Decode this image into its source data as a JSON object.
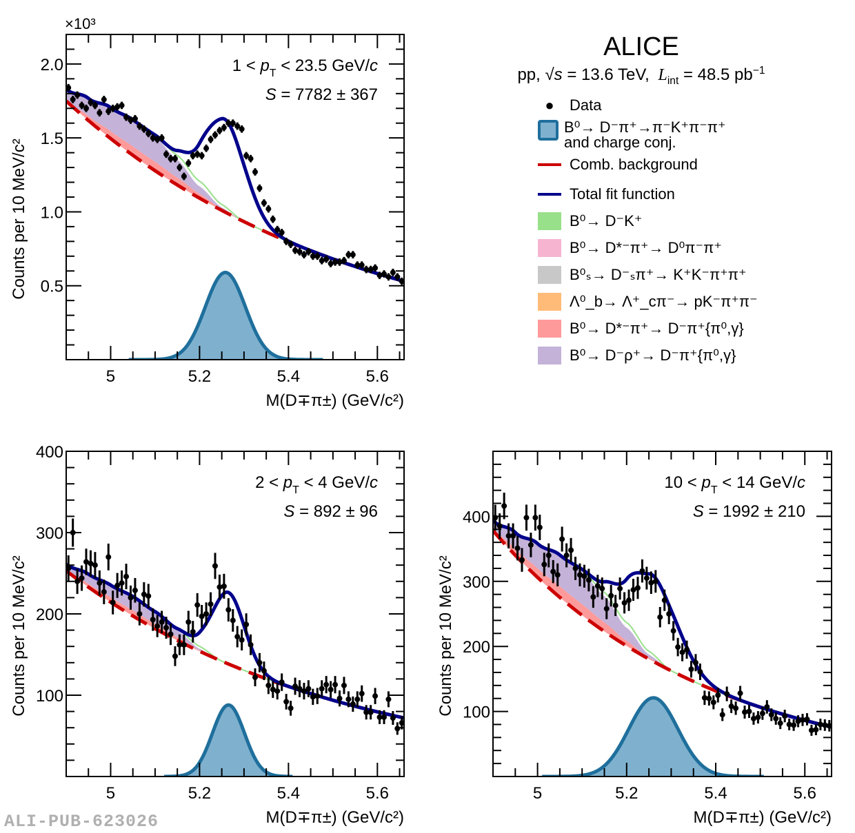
{
  "header": {
    "experiment": "ALICE",
    "collision": "pp,",
    "sqrt_s_symbol": "√s",
    "energy": "= 13.6 TeV,",
    "lumi_symbol": "L",
    "lumi_sub": "int",
    "lumi_value": "= 48.5 pb",
    "lumi_exp": "−1"
  },
  "legend": [
    {
      "key": "data",
      "label": "Data",
      "color": "#000000",
      "kind": "marker"
    },
    {
      "key": "signal",
      "label_line1": "B⁰→ D⁻π⁺→π⁻K⁺π⁻π⁺",
      "label_line2": "and charge conj.",
      "color": "#7fb1cf",
      "edge": "#1f6f9c",
      "kind": "box"
    },
    {
      "key": "comb",
      "label": "Comb. background",
      "color": "#cc0000",
      "kind": "line"
    },
    {
      "key": "total",
      "label": "Total fit function",
      "color": "#00008b",
      "kind": "line"
    },
    {
      "key": "dk",
      "label": "B⁰→ D⁻K⁺",
      "color": "#98e08a",
      "kind": "fill"
    },
    {
      "key": "dstar_d0",
      "label": "B⁰→ D*⁻π⁺→ D⁰π⁻π⁺",
      "color": "#f6b4d0",
      "kind": "fill"
    },
    {
      "key": "bs",
      "label": "B⁰ₛ→ D⁻ₛπ⁺→ K⁺K⁻π⁺π⁺",
      "color": "#c8c8c8",
      "kind": "fill"
    },
    {
      "key": "lb",
      "label": "Λ⁰_b→ Λ⁺_cπ⁻→ pK⁻π⁺π⁻",
      "color": "#ffbb77",
      "kind": "fill"
    },
    {
      "key": "dstar_dpi",
      "label": "B⁰→ D*⁻π⁺→ D⁻π⁺{π⁰,γ}",
      "color": "#ff9a9a",
      "kind": "fill"
    },
    {
      "key": "drho",
      "label": "B⁰→ D⁻ρ⁺→ D⁻π⁺{π⁰,γ}",
      "color": "#c4b2d8",
      "kind": "fill"
    }
  ],
  "watermark": "ALI-PUB-623026",
  "chart_data": [
    {
      "id": "pt-1-23.5",
      "type": "scatter",
      "title": "",
      "pt_label_left": "1 <",
      "pt_label_right": "< 23.5 GeV/",
      "signal_label": "= 7782 ± 367",
      "xlabel": "M(D∓π±) (GeV/c²)",
      "ylabel": "Counts per 10 MeV/c²",
      "y_multiplier": "×10³",
      "xlim": [
        4.9,
        5.66
      ],
      "ylim": [
        0,
        2.2
      ],
      "xticks": [
        5,
        5.2,
        5.4,
        5.6
      ],
      "xtick_labels": [
        "5",
        "5.2",
        "5.4",
        "5.6"
      ],
      "yticks": [
        0.5,
        1.0,
        1.5,
        2.0
      ],
      "ytick_labels": [
        "0.5",
        "1.0",
        "1.5",
        "2.0"
      ],
      "bin_width": 0.01,
      "data_x_start": 4.905,
      "data_y": [
        1.84,
        1.76,
        1.79,
        1.72,
        1.7,
        1.74,
        1.72,
        1.67,
        1.76,
        1.68,
        1.7,
        1.71,
        1.72,
        1.64,
        1.62,
        1.63,
        1.58,
        1.56,
        1.53,
        1.5,
        1.49,
        1.5,
        1.39,
        1.36,
        1.36,
        1.3,
        1.24,
        1.33,
        1.38,
        1.39,
        1.38,
        1.43,
        1.49,
        1.52,
        1.55,
        1.57,
        1.6,
        1.6,
        1.58,
        1.56,
        1.38,
        1.36,
        1.27,
        1.16,
        1.06,
        1.02,
        0.95,
        0.88,
        0.86,
        0.8,
        0.78,
        0.74,
        0.73,
        0.71,
        0.73,
        0.7,
        0.7,
        0.67,
        0.68,
        0.65,
        0.66,
        0.66,
        0.67,
        0.71,
        0.71,
        0.64,
        0.64,
        0.61,
        0.61,
        0.62,
        0.57,
        0.58,
        0.56,
        0.59,
        0.56,
        0.53
      ],
      "y_err": 0.025,
      "comb_bkg": {
        "amp_at_xmin": 1.75,
        "slope": 1.571
      },
      "signal": {
        "mean": 5.258,
        "sigma": 0.045,
        "peak": 0.59,
        "range": [
          5.04,
          5.48
        ]
      },
      "partial_reco": {
        "knots_x": [
          4.9,
          4.95,
          5.0,
          5.05,
          5.1,
          5.15,
          5.2,
          5.25,
          5.3
        ],
        "drho_top": [
          0.08,
          0.12,
          0.16,
          0.18,
          0.17,
          0.12,
          0.05,
          0.01,
          0.0
        ],
        "dstar_top": [
          0.0,
          0.03,
          0.05,
          0.06,
          0.06,
          0.05,
          0.03,
          0.01,
          0.0
        ],
        "dk_top": [
          0.0,
          0.0,
          0.0,
          0.0,
          0.01,
          0.03,
          0.035,
          0.02,
          0.0
        ]
      }
    },
    {
      "id": "pt-2-4",
      "type": "scatter",
      "pt_label_left": "2 <",
      "pt_label_right": "< 4 GeV/",
      "signal_label": "= 892 ± 96",
      "xlabel": "M(D∓π±) (GeV/c²)",
      "ylabel": "Counts per 10 MeV/c²",
      "y_multiplier": "",
      "xlim": [
        4.9,
        5.66
      ],
      "ylim": [
        0,
        400
      ],
      "xticks": [
        5,
        5.2,
        5.4,
        5.6
      ],
      "xtick_labels": [
        "5",
        "5.2",
        "5.4",
        "5.6"
      ],
      "yticks": [
        100,
        200,
        300,
        400
      ],
      "ytick_labels": [
        "100",
        "200",
        "300",
        "400"
      ],
      "bin_width": 0.01,
      "data_x_start": 4.905,
      "data_y": [
        256,
        300,
        240,
        244,
        264,
        262,
        260,
        238,
        227,
        270,
        214,
        235,
        238,
        246,
        220,
        229,
        200,
        224,
        222,
        193,
        185,
        190,
        183,
        175,
        148,
        162,
        162,
        190,
        178,
        211,
        197,
        200,
        212,
        259,
        233,
        234,
        205,
        192,
        172,
        168,
        187,
        162,
        122,
        140,
        130,
        112,
        107,
        105,
        116,
        92,
        84,
        111,
        108,
        105,
        108,
        98,
        99,
        108,
        113,
        107,
        113,
        96,
        112,
        95,
        89,
        95,
        102,
        79,
        79,
        99,
        73,
        73,
        95,
        72,
        59,
        66
      ],
      "y_err_scale": 1.0,
      "comb_bkg": {
        "amp_at_xmin": 253,
        "slope": 1.653
      },
      "signal": {
        "mean": 5.265,
        "sigma": 0.036,
        "peak": 88,
        "range": [
          5.12,
          5.41
        ]
      },
      "partial_reco": {
        "knots_x": [
          4.9,
          4.95,
          5.0,
          5.05,
          5.1,
          5.15,
          5.2,
          5.25
        ],
        "drho_top": [
          6,
          12,
          15,
          17,
          14,
          8,
          2,
          0
        ],
        "dstar_top": [
          2,
          4,
          6,
          7,
          6,
          4,
          1,
          0
        ],
        "dk_top": [
          0,
          0,
          0,
          0,
          1,
          2,
          3,
          0
        ]
      }
    },
    {
      "id": "pt-10-14",
      "type": "scatter",
      "pt_label_left": "10 <",
      "pt_label_right": "< 14 GeV/",
      "signal_label": "= 1992 ± 210",
      "xlabel": "M(D∓π±) (GeV/c²)",
      "ylabel": "Counts per 10 MeV/c²",
      "y_multiplier": "",
      "xlim": [
        4.9,
        5.66
      ],
      "ylim": [
        0,
        500
      ],
      "xticks": [
        5,
        5.2,
        5.4,
        5.6
      ],
      "xtick_labels": [
        "5",
        "5.2",
        "5.4",
        "5.6"
      ],
      "yticks": [
        100,
        200,
        300,
        400
      ],
      "ytick_labels": [
        "100",
        "200",
        "300",
        "400"
      ],
      "bin_width": 0.01,
      "data_x_start": 4.905,
      "data_y": [
        398,
        385,
        416,
        370,
        370,
        351,
        333,
        398,
        356,
        398,
        383,
        326,
        340,
        315,
        310,
        365,
        340,
        348,
        320,
        310,
        308,
        302,
        276,
        293,
        289,
        258,
        278,
        263,
        289,
        267,
        271,
        287,
        290,
        316,
        305,
        298,
        300,
        245,
        271,
        250,
        224,
        199,
        191,
        195,
        165,
        175,
        161,
        121,
        120,
        114,
        125,
        95,
        127,
        108,
        105,
        128,
        99,
        100,
        89,
        91,
        97,
        107,
        95,
        89,
        82,
        93,
        80,
        79,
        85,
        87,
        88,
        71,
        72,
        80,
        79,
        78
      ],
      "y_err_scale": 1.0,
      "comb_bkg": {
        "amp_at_xmin": 378,
        "slope": 2.11
      },
      "signal": {
        "mean": 5.26,
        "sigma": 0.055,
        "peak": 121,
        "range": [
          5.01,
          5.51
        ]
      },
      "partial_reco": {
        "knots_x": [
          4.9,
          4.95,
          5.0,
          5.05,
          5.1,
          5.15,
          5.2,
          5.25,
          5.3
        ],
        "drho_top": [
          12,
          25,
          38,
          48,
          50,
          40,
          20,
          5,
          0
        ],
        "dstar_top": [
          4,
          10,
          14,
          17,
          17,
          14,
          8,
          2,
          0
        ],
        "dk_top": [
          0,
          0,
          0,
          0,
          2,
          6,
          8,
          5,
          0
        ]
      }
    }
  ]
}
